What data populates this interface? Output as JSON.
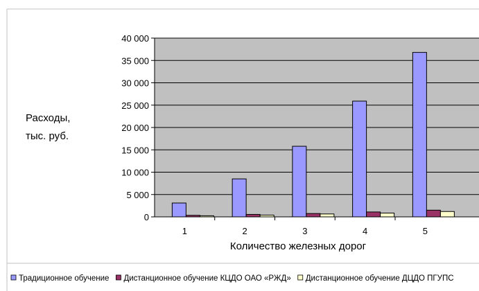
{
  "chart_data": {
    "type": "bar",
    "title": "",
    "xlabel": "Количество железных дорог",
    "ylabel_lines": [
      "Расходы,",
      "тыс. руб."
    ],
    "categories": [
      "1",
      "2",
      "3",
      "4",
      "5"
    ],
    "ylim": [
      0,
      40000
    ],
    "yticks": [
      0,
      5000,
      10000,
      15000,
      20000,
      25000,
      30000,
      35000,
      40000
    ],
    "ytick_labels": [
      "0",
      "5 000",
      "10 000",
      "15 000",
      "20 000",
      "25 000",
      "30 000",
      "35 000",
      "40 000"
    ],
    "grid": true,
    "legend_position": "bottom",
    "series": [
      {
        "name": "Традиционное обучение",
        "color": "#9999ff",
        "values": [
          3100,
          8500,
          15800,
          25900,
          36800
        ]
      },
      {
        "name": "Дистанционное обучение КЦДО ОАО «РЖД»",
        "color": "#993366",
        "values": [
          350,
          550,
          750,
          1100,
          1500
        ]
      },
      {
        "name": "Дистанционное обучение ДЦДО ПГУПС",
        "color": "#ffffcc",
        "values": [
          250,
          400,
          650,
          850,
          1200
        ]
      }
    ]
  },
  "colors": {
    "plot_background": "#c0c0c0",
    "gridline": "#000000",
    "border": "#c0c0c0"
  }
}
